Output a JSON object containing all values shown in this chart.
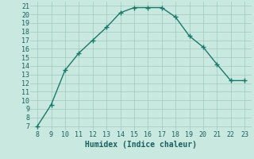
{
  "x": [
    8,
    9,
    10,
    11,
    12,
    13,
    14,
    15,
    16,
    17,
    18,
    19,
    20,
    21,
    22,
    23
  ],
  "y": [
    7,
    9.5,
    13.5,
    15.5,
    17,
    18.5,
    20.2,
    20.8,
    20.8,
    20.8,
    19.7,
    17.5,
    16.2,
    14.2,
    12.3,
    12.3
  ],
  "line_color": "#1a7a6a",
  "marker": "+",
  "bg_color": "#c8e8e0",
  "grid_color": "#a0c8c0",
  "xlabel": "Humidex (Indice chaleur)",
  "xlim": [
    7.5,
    23.5
  ],
  "ylim": [
    6.5,
    21.5
  ],
  "xticks": [
    8,
    9,
    10,
    11,
    12,
    13,
    14,
    15,
    16,
    17,
    18,
    19,
    20,
    21,
    22,
    23
  ],
  "yticks": [
    7,
    8,
    9,
    10,
    11,
    12,
    13,
    14,
    15,
    16,
    17,
    18,
    19,
    20,
    21
  ],
  "font_color": "#1a6060",
  "label_fontsize": 7,
  "tick_fontsize": 6
}
